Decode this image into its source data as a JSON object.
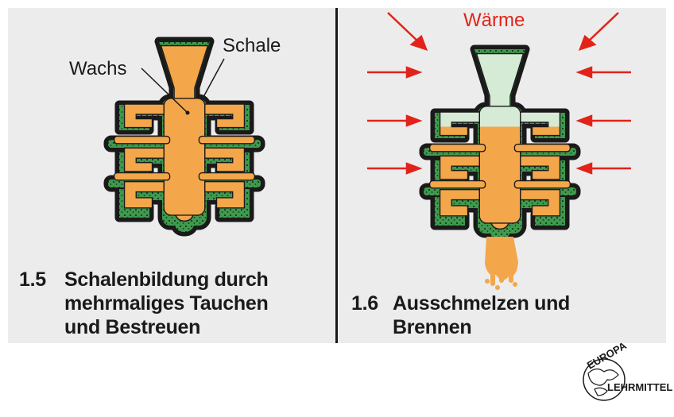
{
  "left_panel": {
    "label_wax": "Wachs",
    "label_shell": "Schale",
    "caption_number": "1.5",
    "caption_lines": [
      "Schalenbildung durch",
      "mehrmaliges Tauchen",
      "und Bestreuen"
    ]
  },
  "right_panel": {
    "label_heat": "Wärme",
    "caption_number": "1.6",
    "caption_lines": [
      "Ausschmelzen und",
      "Brennen"
    ]
  },
  "logo": {
    "top_text": "EUROPA",
    "bottom_text": "LEHRMITTEL"
  },
  "colors": {
    "shell_green": "#3f9a4e",
    "wax_orange": "#f4a64a",
    "cavity_light": "#d6ebd6",
    "arrow_red": "#e2231a",
    "panel_bg": "#ececec"
  }
}
